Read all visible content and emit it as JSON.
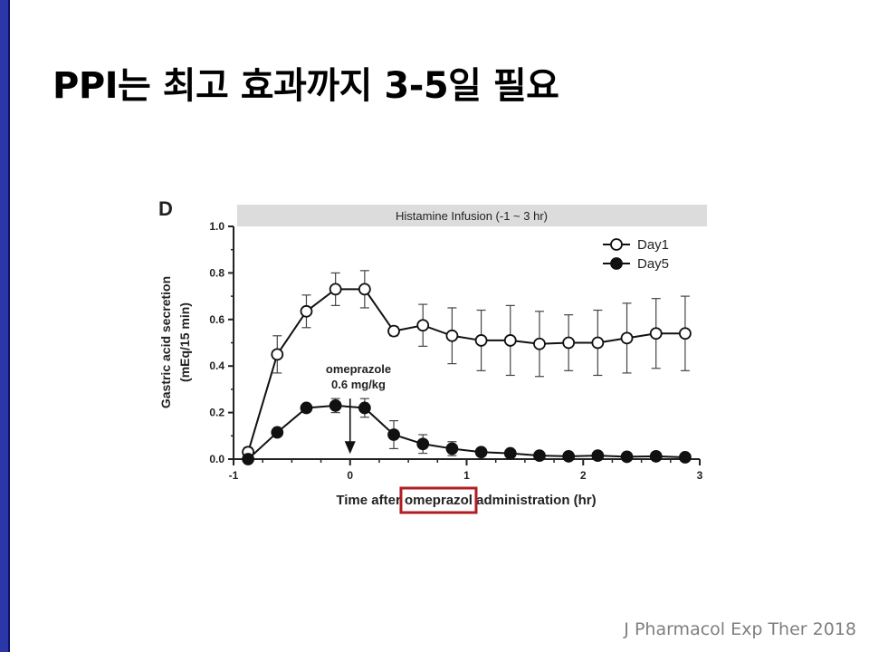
{
  "slide": {
    "title": "PPI는 최고 효과까지 3-5일 필요",
    "citation": "J Pharmacol Exp Ther 2018",
    "accent_color": "#2b36a8",
    "highlight_color": "#b01e23"
  },
  "chart_data": {
    "type": "line",
    "panel_label": "D",
    "banner": "Histamine Infusion (-1 ~ 3 hr)",
    "xlabel_parts": [
      "Time after ",
      "omeprazol",
      " administration (hr)"
    ],
    "xlabel_highlight": "omeprazol",
    "ylabel_lines": [
      "Gastric acid secretion",
      "(mEq/15 min)"
    ],
    "xlim": [
      -1,
      3
    ],
    "ylim": [
      0,
      1.0
    ],
    "xticks": [
      -1,
      0,
      1,
      2,
      3
    ],
    "xtick_labels": [
      "-1",
      "0",
      "1",
      "2",
      "3"
    ],
    "yticks": [
      0,
      0.2,
      0.4,
      0.6,
      0.8,
      1.0
    ],
    "ytick_labels": [
      "0.0",
      "0.2",
      "0.4",
      "0.6",
      "0.8",
      "1.0"
    ],
    "annotation": {
      "lines": [
        "omeprazole",
        "0.6 mg/kg"
      ],
      "x": 0.0,
      "arrow_from_y": 0.26,
      "arrow_to_y": 0.03
    },
    "legend_position": "top-right",
    "grid": false,
    "series": [
      {
        "name": "Day1",
        "marker": "open-circle",
        "x": [
          -0.875,
          -0.625,
          -0.375,
          -0.125,
          0.125,
          0.375,
          0.625,
          0.875,
          1.125,
          1.375,
          1.625,
          1.875,
          2.125,
          2.375,
          2.625,
          2.875
        ],
        "y": [
          0.03,
          0.45,
          0.635,
          0.73,
          0.73,
          0.55,
          0.575,
          0.53,
          0.51,
          0.51,
          0.495,
          0.5,
          0.5,
          0.52,
          0.54,
          0.54
        ],
        "err": [
          0.02,
          0.08,
          0.07,
          0.07,
          0.08,
          0.02,
          0.09,
          0.12,
          0.13,
          0.15,
          0.14,
          0.12,
          0.14,
          0.15,
          0.15,
          0.16
        ]
      },
      {
        "name": "Day5",
        "marker": "filled-circle",
        "x": [
          -0.875,
          -0.625,
          -0.375,
          -0.125,
          0.125,
          0.375,
          0.625,
          0.875,
          1.125,
          1.375,
          1.625,
          1.875,
          2.125,
          2.375,
          2.625,
          2.875
        ],
        "y": [
          0.0,
          0.115,
          0.22,
          0.23,
          0.22,
          0.105,
          0.065,
          0.045,
          0.03,
          0.025,
          0.015,
          0.012,
          0.015,
          0.01,
          0.012,
          0.008
        ],
        "err": [
          0.005,
          0.01,
          0.015,
          0.03,
          0.04,
          0.06,
          0.04,
          0.03,
          0.015,
          0.015,
          0.01,
          0.008,
          0.008,
          0.008,
          0.008,
          0.006
        ]
      }
    ]
  }
}
